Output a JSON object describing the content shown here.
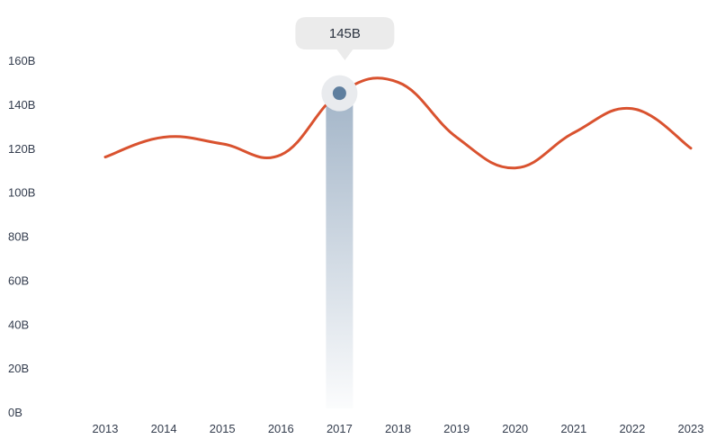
{
  "chart_data": {
    "type": "line",
    "title": "",
    "xlabel": "",
    "ylabel": "",
    "categories": [
      "2013",
      "2014",
      "2015",
      "2016",
      "2017",
      "2018",
      "2019",
      "2020",
      "2021",
      "2022",
      "2023"
    ],
    "series": [
      {
        "values": [
          116,
          125,
          122,
          117,
          145,
          150,
          125,
          111,
          127,
          138,
          120
        ]
      }
    ],
    "ylim": [
      0,
      160
    ],
    "y_ticks": [
      "0B",
      "20B",
      "40B",
      "60B",
      "80B",
      "100B",
      "120B",
      "140B",
      "160B"
    ],
    "y_tick_values": [
      0,
      20,
      40,
      60,
      80,
      100,
      120,
      140,
      160
    ],
    "grid": false,
    "highlight": {
      "category": "2017",
      "value": 145,
      "label": "145B"
    },
    "colors": {
      "line": "#d9522f",
      "highlight_marker": "#5f7f9f",
      "highlight_band": "#a9bacb",
      "tooltip_bg": "#ebebeb",
      "text": "#333c4d"
    }
  }
}
